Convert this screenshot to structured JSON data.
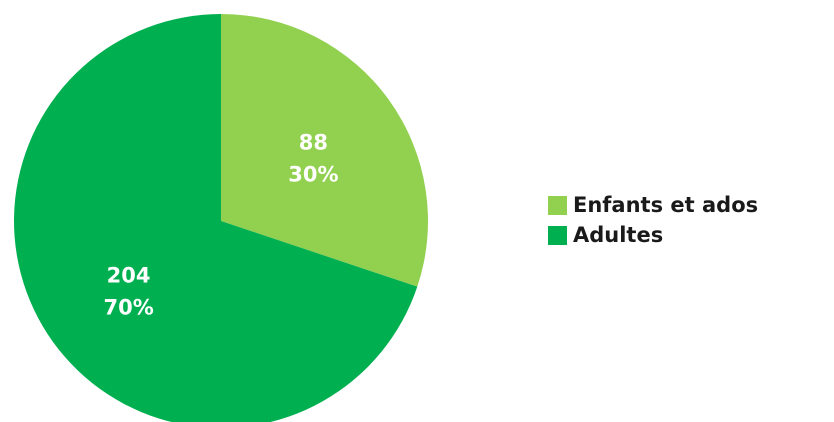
{
  "chart_data": {
    "type": "pie",
    "title": "",
    "categories": [
      "Enfants et ados",
      "Adultes"
    ],
    "values": [
      88,
      204
    ],
    "percent_labels": [
      "30%",
      "70%"
    ],
    "value_labels": [
      "88",
      "204"
    ],
    "colors": [
      "#92d050",
      "#00b050"
    ],
    "start_angle_deg": 0,
    "direction": "clockwise",
    "legend_position": "right"
  },
  "legend": {
    "items": [
      {
        "label": "Enfants et ados",
        "color": "#92d050"
      },
      {
        "label": "Adultes",
        "color": "#00b050"
      }
    ]
  }
}
